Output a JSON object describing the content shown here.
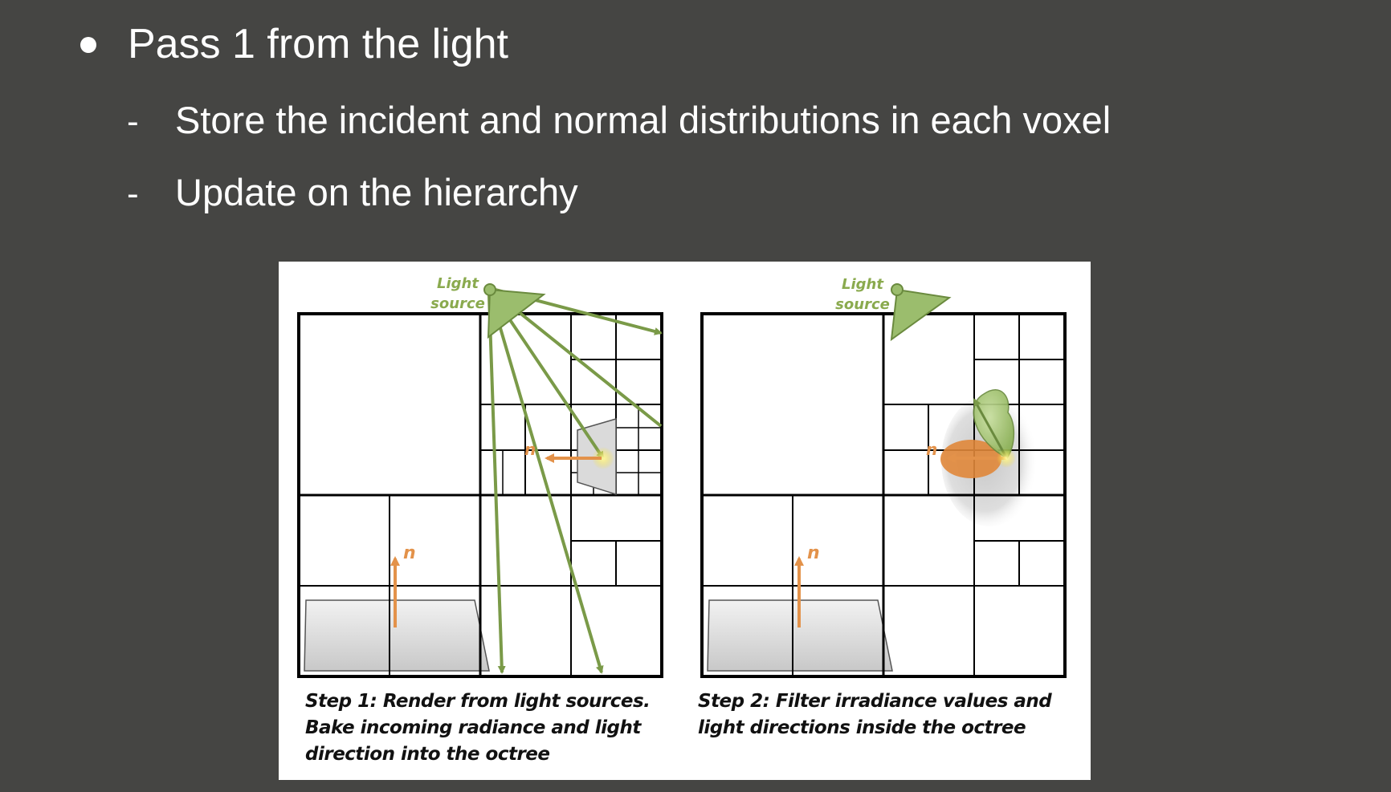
{
  "slide": {
    "bullet": "Pass 1 from the light",
    "sub_bullets": [
      {
        "dash": "-",
        "text": "Store the incident and normal distributions in each voxel"
      },
      {
        "dash": "-",
        "text": "Update on the hierarchy"
      }
    ]
  },
  "figure": {
    "panel1": {
      "light_label_line1": "Light",
      "light_label_line2": "source",
      "normal_label": "n",
      "surface_normal_label": "n",
      "caption": "Step 1: Render from light sources.\nBake incoming radiance and light\ndirection into the octree"
    },
    "panel2": {
      "light_label_line1": "Light",
      "light_label_line2": "source",
      "normal_label": "n",
      "surface_normal_label": "n",
      "caption": "Step 2: Filter irradiance values and\nlight directions inside the octree"
    },
    "colors": {
      "light_green": "#7a9a48",
      "label_green": "#8aaa4e",
      "normal_orange": "#e3924a",
      "grid": "#000000",
      "surface_gray": "#d4d4d4"
    }
  }
}
